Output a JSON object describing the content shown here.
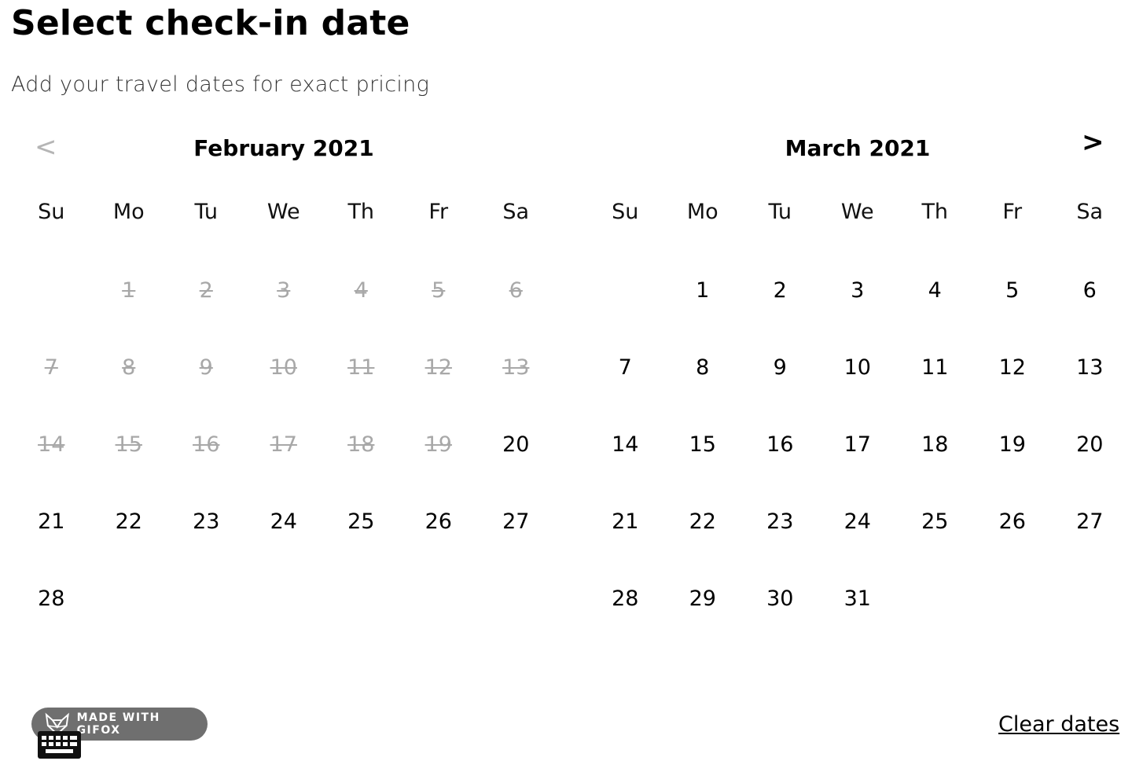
{
  "header": {
    "title": "Select check-in date",
    "subtitle": "Add your travel dates for exact pricing"
  },
  "nav": {
    "prev": "<",
    "next": ">"
  },
  "weekdays": [
    "Su",
    "Mo",
    "Tu",
    "We",
    "Th",
    "Fr",
    "Sa"
  ],
  "months": [
    {
      "title": "February 2021",
      "weeks": [
        [
          {
            "label": "",
            "state": "empty"
          },
          {
            "label": "1",
            "state": "disabled"
          },
          {
            "label": "2",
            "state": "disabled"
          },
          {
            "label": "3",
            "state": "disabled"
          },
          {
            "label": "4",
            "state": "disabled"
          },
          {
            "label": "5",
            "state": "disabled"
          },
          {
            "label": "6",
            "state": "disabled"
          }
        ],
        [
          {
            "label": "7",
            "state": "disabled"
          },
          {
            "label": "8",
            "state": "disabled"
          },
          {
            "label": "9",
            "state": "disabled"
          },
          {
            "label": "10",
            "state": "disabled"
          },
          {
            "label": "11",
            "state": "disabled"
          },
          {
            "label": "12",
            "state": "disabled"
          },
          {
            "label": "13",
            "state": "disabled"
          }
        ],
        [
          {
            "label": "14",
            "state": "disabled"
          },
          {
            "label": "15",
            "state": "disabled"
          },
          {
            "label": "16",
            "state": "disabled"
          },
          {
            "label": "17",
            "state": "disabled"
          },
          {
            "label": "18",
            "state": "disabled"
          },
          {
            "label": "19",
            "state": "disabled"
          },
          {
            "label": "20",
            "state": "available"
          }
        ],
        [
          {
            "label": "21",
            "state": "available"
          },
          {
            "label": "22",
            "state": "available"
          },
          {
            "label": "23",
            "state": "available"
          },
          {
            "label": "24",
            "state": "available"
          },
          {
            "label": "25",
            "state": "available"
          },
          {
            "label": "26",
            "state": "available"
          },
          {
            "label": "27",
            "state": "available"
          }
        ],
        [
          {
            "label": "28",
            "state": "available"
          },
          {
            "label": "",
            "state": "empty"
          },
          {
            "label": "",
            "state": "empty"
          },
          {
            "label": "",
            "state": "empty"
          },
          {
            "label": "",
            "state": "empty"
          },
          {
            "label": "",
            "state": "empty"
          },
          {
            "label": "",
            "state": "empty"
          }
        ]
      ]
    },
    {
      "title": "March 2021",
      "weeks": [
        [
          {
            "label": "",
            "state": "empty"
          },
          {
            "label": "1",
            "state": "available"
          },
          {
            "label": "2",
            "state": "available"
          },
          {
            "label": "3",
            "state": "available"
          },
          {
            "label": "4",
            "state": "available"
          },
          {
            "label": "5",
            "state": "available"
          },
          {
            "label": "6",
            "state": "available"
          }
        ],
        [
          {
            "label": "7",
            "state": "available"
          },
          {
            "label": "8",
            "state": "available"
          },
          {
            "label": "9",
            "state": "available"
          },
          {
            "label": "10",
            "state": "available"
          },
          {
            "label": "11",
            "state": "available"
          },
          {
            "label": "12",
            "state": "available"
          },
          {
            "label": "13",
            "state": "available"
          }
        ],
        [
          {
            "label": "14",
            "state": "available"
          },
          {
            "label": "15",
            "state": "available"
          },
          {
            "label": "16",
            "state": "available"
          },
          {
            "label": "17",
            "state": "available"
          },
          {
            "label": "18",
            "state": "available"
          },
          {
            "label": "19",
            "state": "available"
          },
          {
            "label": "20",
            "state": "available"
          }
        ],
        [
          {
            "label": "21",
            "state": "available"
          },
          {
            "label": "22",
            "state": "available"
          },
          {
            "label": "23",
            "state": "available"
          },
          {
            "label": "24",
            "state": "available"
          },
          {
            "label": "25",
            "state": "available"
          },
          {
            "label": "26",
            "state": "available"
          },
          {
            "label": "27",
            "state": "available"
          }
        ],
        [
          {
            "label": "28",
            "state": "available"
          },
          {
            "label": "29",
            "state": "available"
          },
          {
            "label": "30",
            "state": "available"
          },
          {
            "label": "31",
            "state": "available"
          },
          {
            "label": "",
            "state": "empty"
          },
          {
            "label": "",
            "state": "empty"
          },
          {
            "label": "",
            "state": "empty"
          }
        ]
      ]
    }
  ],
  "footer": {
    "clear_dates": "Clear dates",
    "badge_text": "MADE WITH GIFOX"
  },
  "icons": {
    "prev": "chevron-left-icon",
    "next": "chevron-right-icon",
    "gifox": "fox-logo-icon",
    "keyboard": "keyboard-icon"
  },
  "colors": {
    "disabled_day": "#a8a8a8",
    "badge_bg": "#6f6f6f",
    "text": "#000000"
  }
}
